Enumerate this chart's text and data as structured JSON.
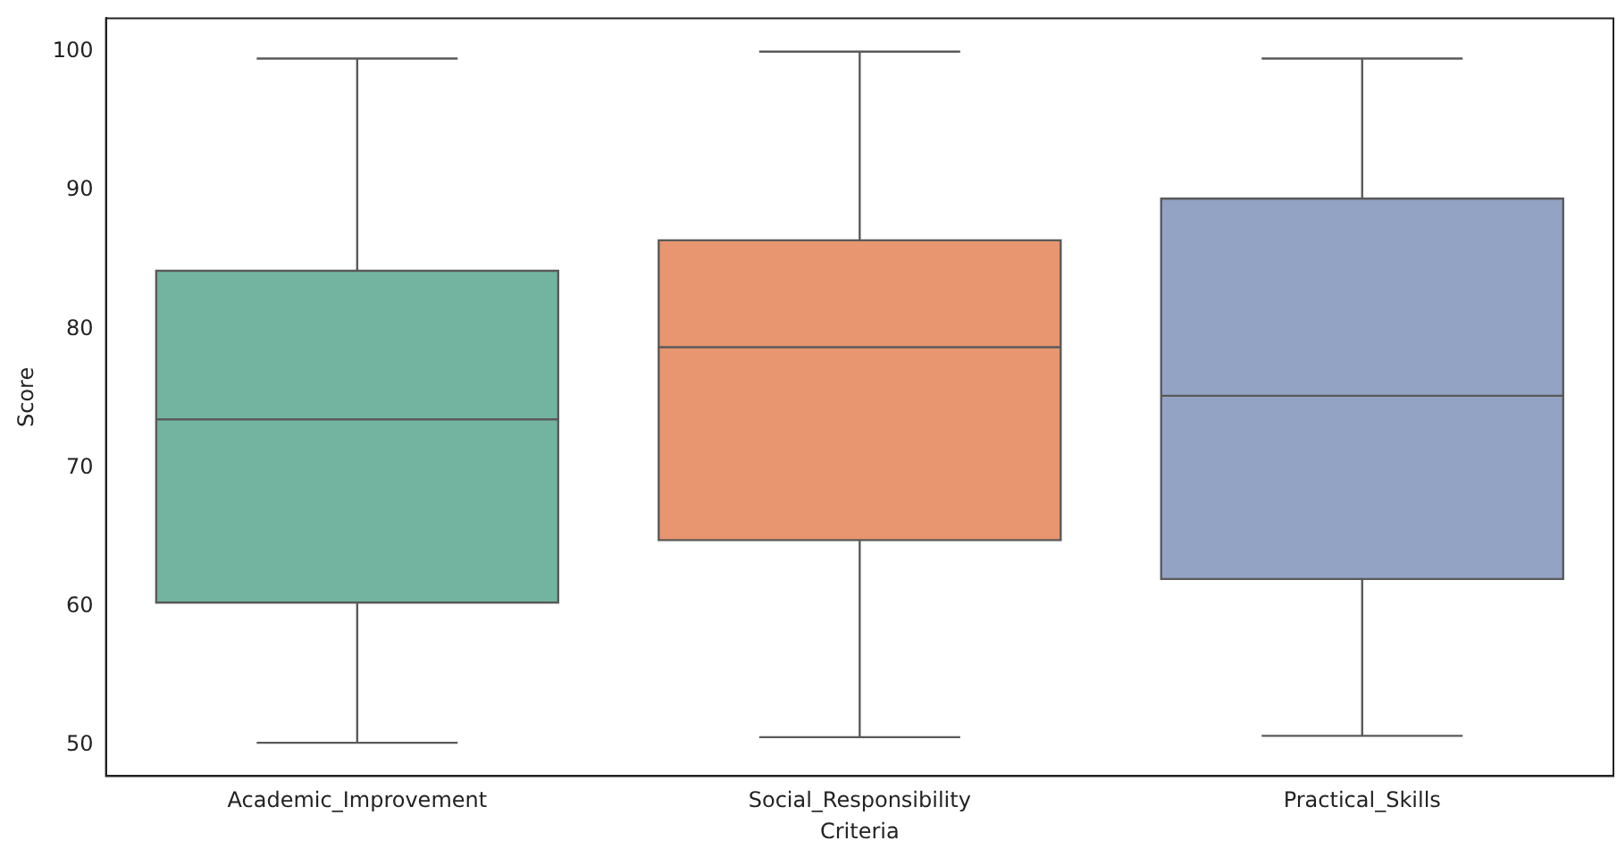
{
  "chart_data": {
    "type": "box",
    "xlabel": "Criteria",
    "ylabel": "Score",
    "categories": [
      "Academic_Improvement",
      "Social_Responsibility",
      "Practical_Skills"
    ],
    "colors": [
      "#73b4a0",
      "#e8966f",
      "#93a3c4"
    ],
    "boxes": [
      {
        "low": 50.2,
        "q1": 60.3,
        "median": 73.5,
        "q3": 84.2,
        "high": 99.5
      },
      {
        "low": 50.6,
        "q1": 64.8,
        "median": 78.7,
        "q3": 86.4,
        "high": 100
      },
      {
        "low": 50.7,
        "q1": 62.0,
        "median": 75.2,
        "q3": 89.4,
        "high": 99.5
      }
    ],
    "ylim": [
      47.8,
      102.4
    ],
    "yticks": [
      50,
      60,
      70,
      80,
      90,
      100
    ],
    "grid": false,
    "legend": false
  }
}
